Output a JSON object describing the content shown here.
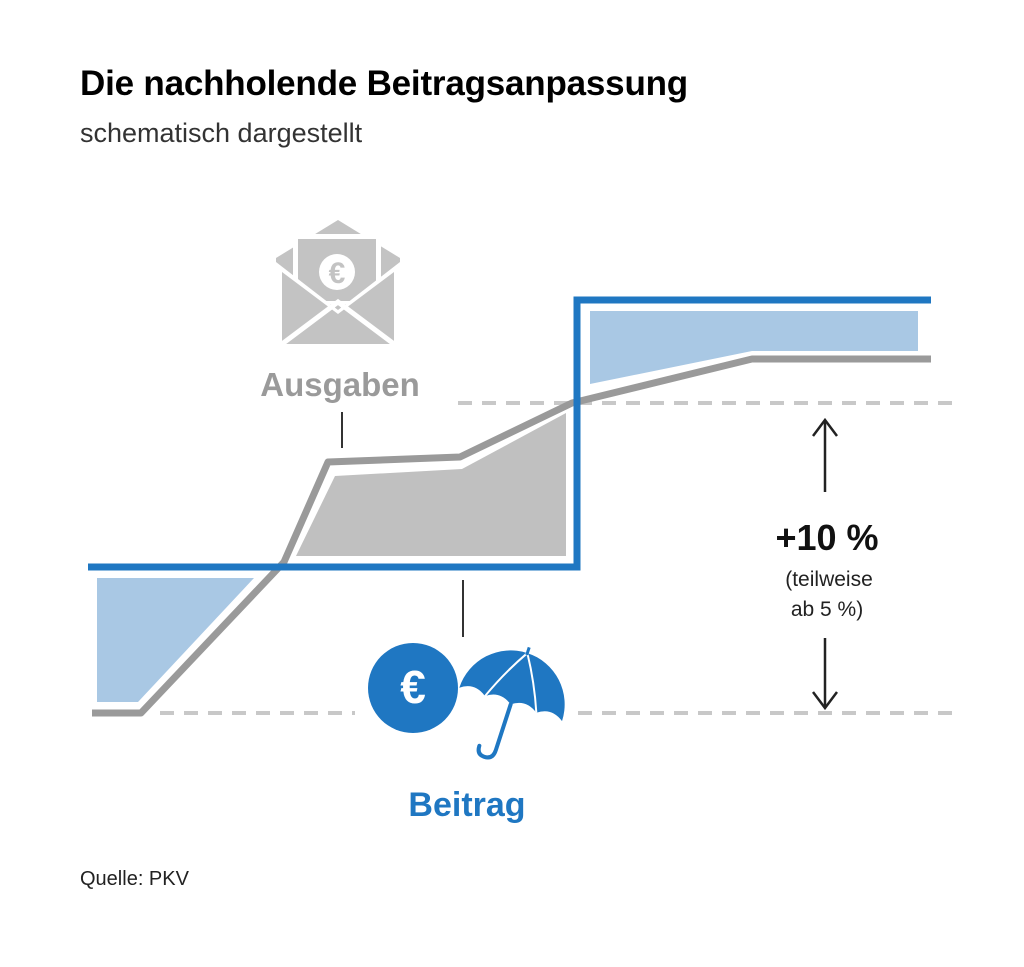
{
  "title": "Die nachholende Beitragsanpassung",
  "subtitle": "schematisch dargestellt",
  "source": "Quelle: PKV",
  "labels": {
    "ausgaben": "Ausgaben",
    "beitrag": "Beitrag",
    "percent": "+10 %",
    "note_line1": "(teilweise",
    "note_line2": "ab 5 %)"
  },
  "icons": {
    "envelope": "envelope-euro-icon",
    "coin": "euro-coin-icon",
    "umbrella": "umbrella-icon",
    "currency_symbol": "€"
  },
  "colors": {
    "beitrag_line": "#1f77c2",
    "ausgaben_line": "#9a9a9a",
    "blue_fill": "#a9c8e4",
    "gray_fill": "#c0c0c0",
    "dashed": "#c8c8c8"
  }
}
